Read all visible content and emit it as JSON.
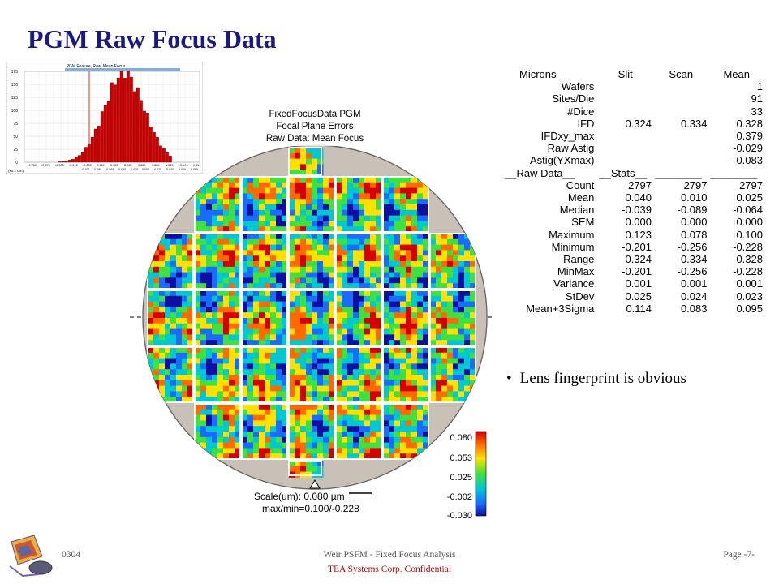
{
  "slide": {
    "title": "PGM Raw Focus Data",
    "bullet": "Lens fingerprint is obvious"
  },
  "histogram": {
    "title": "PGM Feature, Raw, Mean Focus",
    "y_ticks": [
      "175",
      "150",
      "125",
      "100",
      "75",
      "50",
      "25",
      "0"
    ],
    "y_unit": "(x0.1 um)",
    "x_ticks_row1": [
      "-0.755",
      "-0.575",
      "-0.395",
      "-0.215",
      "-0.035",
      "0.145",
      "0.325",
      "0.505",
      "0.685",
      "0.865",
      "1.045",
      "-0.100",
      "0.010"
    ],
    "x_ticks_row2": [
      "-0.100",
      "-0.080",
      "-0.060",
      "-0.040",
      "-0.020",
      "0.000",
      "0.020",
      "0.040",
      "0.060",
      "0.080",
      "0.100"
    ],
    "accent_color": "#cc0000"
  },
  "wafer": {
    "title_line1": "FixedFocusData PGM",
    "title_line2": "Focal Plane Errors",
    "title_line3": "Raw Data: Mean Focus",
    "scale_line1": "Scale(um): 0.080 µm",
    "scale_line2": "max/min=0.100/-0.228",
    "disk_color": "#c9c1b8"
  },
  "colorbar": {
    "labels": [
      "0.080",
      "0.053",
      "0.025",
      "-0.002",
      "-0.030"
    ]
  },
  "stats": {
    "headers": [
      "Microns",
      "Slit",
      "Scan",
      "Mean"
    ],
    "rows": [
      {
        "label": "Wafers",
        "slit": "",
        "scan": "",
        "mean": "1"
      },
      {
        "label": "Sites/Die",
        "slit": "",
        "scan": "",
        "mean": "91"
      },
      {
        "label": "#Dice",
        "slit": "",
        "scan": "",
        "mean": "33"
      },
      {
        "label": "IFD",
        "slit": "0.324",
        "scan": "0.334",
        "mean": "0.328"
      },
      {
        "label": "IFDxy_max",
        "slit": "",
        "scan": "",
        "mean": "0.379"
      },
      {
        "label": "Raw Astig",
        "slit": "",
        "scan": "",
        "mean": "-0.029"
      },
      {
        "label": "Astig(YXmax)",
        "slit": "",
        "scan": "",
        "mean": "-0.083"
      },
      {
        "label": "__Raw Data__",
        "slit": "__Stats__",
        "scan": "________",
        "mean": "________"
      },
      {
        "label": "Count",
        "slit": "2797",
        "scan": "2797",
        "mean": "2797"
      },
      {
        "label": "Mean",
        "slit": "0.040",
        "scan": "0.010",
        "mean": "0.025"
      },
      {
        "label": "Median",
        "slit": "-0.039",
        "scan": "-0.089",
        "mean": "-0.064"
      },
      {
        "label": "SEM",
        "slit": "0.000",
        "scan": "0.000",
        "mean": "0.000"
      },
      {
        "label": "Maximum",
        "slit": "0.123",
        "scan": "0.078",
        "mean": "0.100"
      },
      {
        "label": "Minimum",
        "slit": "-0.201",
        "scan": "-0.256",
        "mean": "-0.228"
      },
      {
        "label": "Range",
        "slit": "0.324",
        "scan": "0.334",
        "mean": "0.328"
      },
      {
        "label": "MinMax",
        "slit": "-0.201",
        "scan": "-0.256",
        "mean": "-0.228"
      },
      {
        "label": "Variance",
        "slit": "0.001",
        "scan": "0.001",
        "mean": "0.001"
      },
      {
        "label": "StDev",
        "slit": "0.025",
        "scan": "0.024",
        "mean": "0.023"
      },
      {
        "label": "Mean+3Sigma",
        "slit": "0.114",
        "scan": "0.083",
        "mean": "0.095"
      }
    ]
  },
  "footer": {
    "left": "0304",
    "center": "Weir PSFM - Fixed Focus Analysis",
    "right": "Page -7-",
    "confidential": "TEA Systems Corp. Confidential"
  }
}
